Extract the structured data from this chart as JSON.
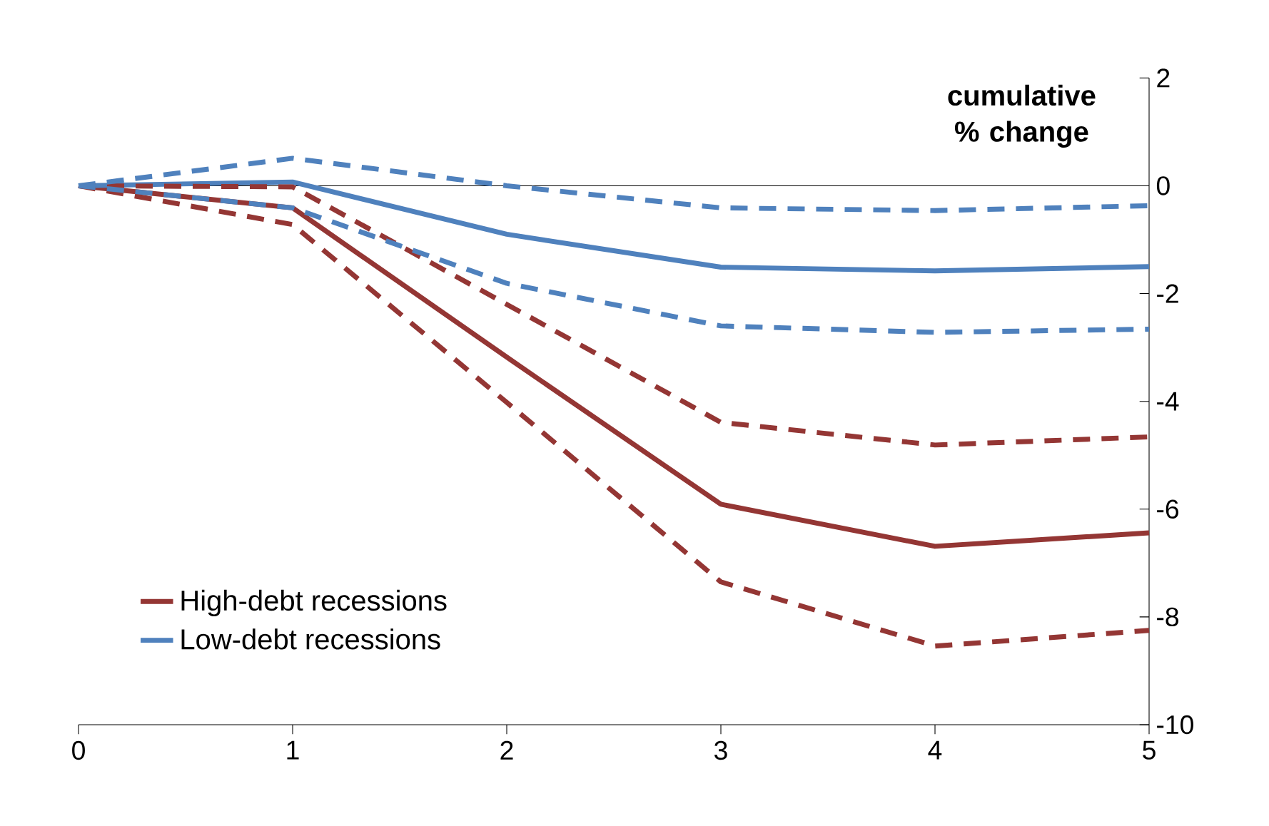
{
  "chart_data": {
    "type": "line",
    "ylabel": "cumulative % change",
    "x": [
      0,
      1,
      2,
      3,
      4,
      5
    ],
    "xlim": [
      0,
      5
    ],
    "xticks": [
      0,
      1,
      2,
      3,
      4,
      5
    ],
    "ylim": [
      -10,
      2
    ],
    "yticks": [
      -10,
      -8,
      -6,
      -4,
      -2,
      0,
      2
    ],
    "legend": "bottom left",
    "grid": false,
    "marker": "none",
    "ref_lines": [
      {
        "axis": "y",
        "value": 0,
        "color": "#000000"
      }
    ],
    "series": [
      {
        "name": "High-debt recessions",
        "color": "#943634",
        "line_style": "solid",
        "values": [
          0,
          -0.41,
          -3.18,
          -5.91,
          -6.69,
          -6.44
        ]
      },
      {
        "name": "Low-debt recessions",
        "color": "#4f81bd",
        "line_style": "solid",
        "values": [
          0,
          0.07,
          -0.9,
          -1.51,
          -1.58,
          -1.5
        ]
      },
      {
        "color": "#943634",
        "line_style": "dashed",
        "values": [
          0,
          -0.02,
          -2.2,
          -4.39,
          -4.81,
          -4.66
        ]
      },
      {
        "color": "#943634",
        "line_style": "dashed",
        "values": [
          0,
          -0.72,
          -4.02,
          -7.35,
          -8.54,
          -8.25
        ]
      },
      {
        "color": "#4f81bd",
        "line_style": "dashed",
        "values": [
          0,
          0.51,
          0.0,
          -0.41,
          -0.46,
          -0.37
        ]
      },
      {
        "color": "#4f81bd",
        "line_style": "dashed",
        "values": [
          0,
          -0.41,
          -1.81,
          -2.6,
          -2.72,
          -2.66
        ]
      }
    ]
  }
}
